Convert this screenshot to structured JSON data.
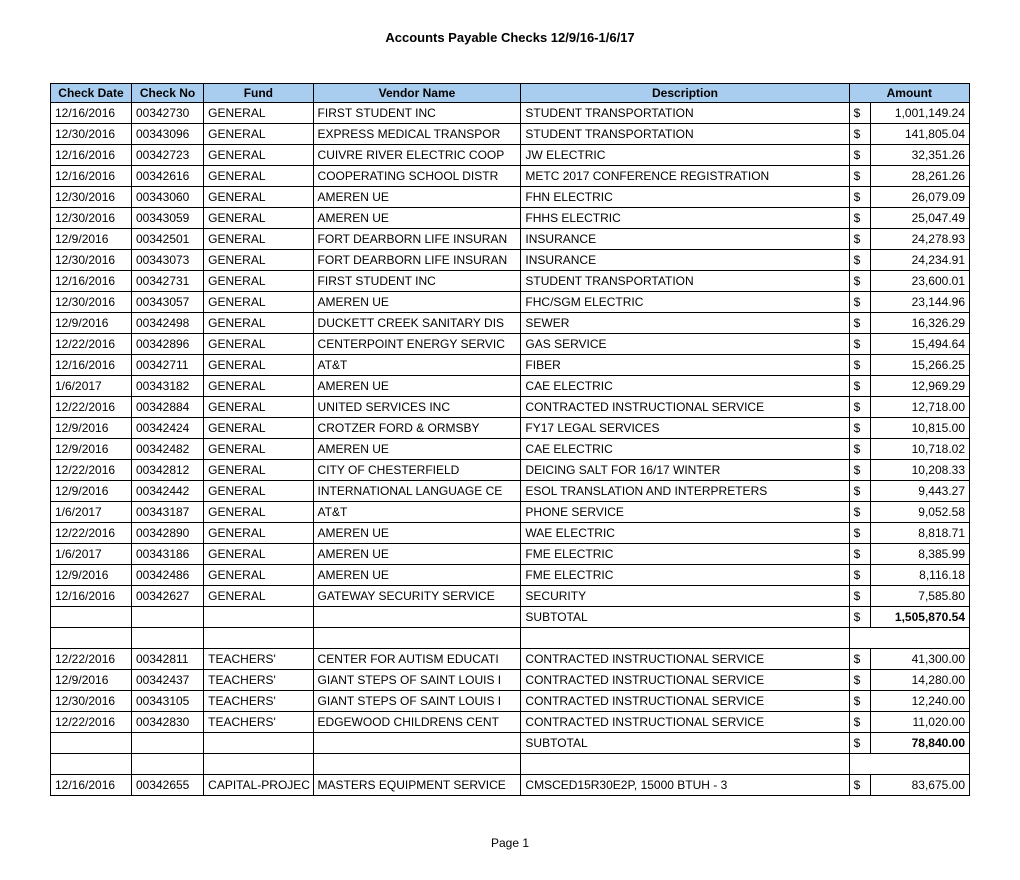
{
  "title": "Accounts Payable Checks 12/9/16-1/6/17",
  "page_label": "Page 1",
  "header_bg": "#a9cdee",
  "columns": [
    "Check Date",
    "Check No",
    "Fund",
    "Vendor Name",
    "Description",
    "Amount"
  ],
  "rows": [
    {
      "date": "12/16/2016",
      "check": "00342730",
      "fund": "GENERAL",
      "vendor": "FIRST STUDENT INC",
      "desc": "STUDENT TRANSPORTATION",
      "cur": "$",
      "amount": "1,001,149.24"
    },
    {
      "date": "12/30/2016",
      "check": "00343096",
      "fund": "GENERAL",
      "vendor": "EXPRESS MEDICAL TRANSPOR",
      "desc": "STUDENT TRANSPORTATION",
      "cur": "$",
      "amount": "141,805.04"
    },
    {
      "date": "12/16/2016",
      "check": "00342723",
      "fund": "GENERAL",
      "vendor": "CUIVRE RIVER ELECTRIC COOP",
      "desc": "JW ELECTRIC",
      "cur": "$",
      "amount": "32,351.26"
    },
    {
      "date": "12/16/2016",
      "check": "00342616",
      "fund": "GENERAL",
      "vendor": "COOPERATING SCHOOL DISTR",
      "desc": "METC 2017 CONFERENCE REGISTRATION",
      "cur": "$",
      "amount": "28,261.26"
    },
    {
      "date": "12/30/2016",
      "check": "00343060",
      "fund": "GENERAL",
      "vendor": "AMEREN UE",
      "desc": "FHN ELECTRIC",
      "cur": "$",
      "amount": "26,079.09"
    },
    {
      "date": "12/30/2016",
      "check": "00343059",
      "fund": "GENERAL",
      "vendor": "AMEREN UE",
      "desc": "FHHS ELECTRIC",
      "cur": "$",
      "amount": "25,047.49"
    },
    {
      "date": "12/9/2016",
      "check": "00342501",
      "fund": "GENERAL",
      "vendor": "FORT DEARBORN LIFE INSURAN",
      "desc": "INSURANCE",
      "cur": "$",
      "amount": "24,278.93"
    },
    {
      "date": "12/30/2016",
      "check": "00343073",
      "fund": "GENERAL",
      "vendor": "FORT DEARBORN LIFE INSURAN",
      "desc": "INSURANCE",
      "cur": "$",
      "amount": "24,234.91"
    },
    {
      "date": "12/16/2016",
      "check": "00342731",
      "fund": "GENERAL",
      "vendor": "FIRST STUDENT INC",
      "desc": "STUDENT TRANSPORTATION",
      "cur": "$",
      "amount": "23,600.01"
    },
    {
      "date": "12/30/2016",
      "check": "00343057",
      "fund": "GENERAL",
      "vendor": "AMEREN UE",
      "desc": "FHC/SGM ELECTRIC",
      "cur": "$",
      "amount": "23,144.96"
    },
    {
      "date": "12/9/2016",
      "check": "00342498",
      "fund": "GENERAL",
      "vendor": "DUCKETT CREEK SANITARY DIS",
      "desc": "SEWER",
      "cur": "$",
      "amount": "16,326.29"
    },
    {
      "date": "12/22/2016",
      "check": "00342896",
      "fund": "GENERAL",
      "vendor": "CENTERPOINT ENERGY SERVIC",
      "desc": "GAS SERVICE",
      "cur": "$",
      "amount": "15,494.64"
    },
    {
      "date": "12/16/2016",
      "check": "00342711",
      "fund": "GENERAL",
      "vendor": "AT&T",
      "desc": "FIBER",
      "cur": "$",
      "amount": "15,266.25"
    },
    {
      "date": "1/6/2017",
      "check": "00343182",
      "fund": "GENERAL",
      "vendor": "AMEREN UE",
      "desc": "CAE ELECTRIC",
      "cur": "$",
      "amount": "12,969.29"
    },
    {
      "date": "12/22/2016",
      "check": "00342884",
      "fund": "GENERAL",
      "vendor": "UNITED SERVICES INC",
      "desc": "CONTRACTED INSTRUCTIONAL SERVICE",
      "cur": "$",
      "amount": "12,718.00"
    },
    {
      "date": "12/9/2016",
      "check": "00342424",
      "fund": "GENERAL",
      "vendor": "CROTZER  FORD & ORMSBY",
      "desc": "FY17 LEGAL SERVICES",
      "cur": "$",
      "amount": "10,815.00"
    },
    {
      "date": "12/9/2016",
      "check": "00342482",
      "fund": "GENERAL",
      "vendor": "AMEREN UE",
      "desc": "CAE ELECTRIC",
      "cur": "$",
      "amount": "10,718.02"
    },
    {
      "date": "12/22/2016",
      "check": "00342812",
      "fund": "GENERAL",
      "vendor": "CITY OF CHESTERFIELD",
      "desc": "DEICING SALT FOR 16/17 WINTER",
      "cur": "$",
      "amount": "10,208.33"
    },
    {
      "date": "12/9/2016",
      "check": "00342442",
      "fund": "GENERAL",
      "vendor": "INTERNATIONAL LANGUAGE CE",
      "desc": "ESOL TRANSLATION AND INTERPRETERS",
      "cur": "$",
      "amount": "9,443.27"
    },
    {
      "date": "1/6/2017",
      "check": "00343187",
      "fund": "GENERAL",
      "vendor": "AT&T",
      "desc": "PHONE SERVICE",
      "cur": "$",
      "amount": "9,052.58"
    },
    {
      "date": "12/22/2016",
      "check": "00342890",
      "fund": "GENERAL",
      "vendor": "AMEREN UE",
      "desc": "WAE ELECTRIC",
      "cur": "$",
      "amount": "8,818.71"
    },
    {
      "date": "1/6/2017",
      "check": "00343186",
      "fund": "GENERAL",
      "vendor": "AMEREN UE",
      "desc": "FME ELECTRIC",
      "cur": "$",
      "amount": "8,385.99"
    },
    {
      "date": "12/9/2016",
      "check": "00342486",
      "fund": "GENERAL",
      "vendor": "AMEREN UE",
      "desc": "FME ELECTRIC",
      "cur": "$",
      "amount": "8,116.18"
    },
    {
      "date": "12/16/2016",
      "check": "00342627",
      "fund": "GENERAL",
      "vendor": "GATEWAY SECURITY SERVICE",
      "desc": "SECURITY",
      "cur": "$",
      "amount": "7,585.80"
    },
    {
      "subtotal": true,
      "label": "SUBTOTAL",
      "cur": "$",
      "amount": "1,505,870.54"
    },
    {
      "blank": true
    },
    {
      "date": "12/22/2016",
      "check": "00342811",
      "fund": "TEACHERS'",
      "vendor": "CENTER FOR AUTISM EDUCATI",
      "desc": "CONTRACTED INSTRUCTIONAL SERVICE",
      "cur": "$",
      "amount": "41,300.00"
    },
    {
      "date": "12/9/2016",
      "check": "00342437",
      "fund": "TEACHERS'",
      "vendor": "GIANT STEPS OF SAINT LOUIS I",
      "desc": "CONTRACTED INSTRUCTIONAL SERVICE",
      "cur": "$",
      "amount": "14,280.00"
    },
    {
      "date": "12/30/2016",
      "check": "00343105",
      "fund": "TEACHERS'",
      "vendor": "GIANT STEPS OF SAINT LOUIS I",
      "desc": "CONTRACTED INSTRUCTIONAL SERVICE",
      "cur": "$",
      "amount": "12,240.00"
    },
    {
      "date": "12/22/2016",
      "check": "00342830",
      "fund": "TEACHERS'",
      "vendor": "EDGEWOOD CHILDRENS CENT",
      "desc": "CONTRACTED INSTRUCTIONAL SERVICE",
      "cur": "$",
      "amount": "11,020.00"
    },
    {
      "subtotal": true,
      "label": "SUBTOTAL",
      "cur": "$",
      "amount": "78,840.00"
    },
    {
      "blank": true
    },
    {
      "date": "12/16/2016",
      "check": "00342655",
      "fund": "CAPITAL-PROJEC",
      "vendor": "MASTERS EQUIPMENT SERVICE",
      "desc": "CMSCED15R30E2P, 15000 BTUH - 3",
      "cur": "$",
      "amount": "83,675.00"
    }
  ]
}
